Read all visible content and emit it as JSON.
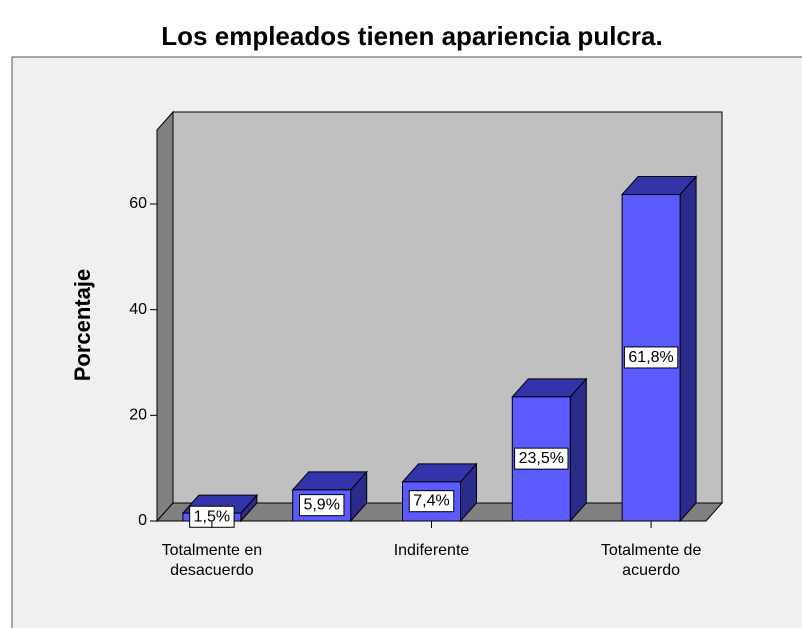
{
  "chart_data": {
    "type": "bar3d",
    "title": "Los empleados tienen apariencia pulcra.",
    "y_label": "Porcentaje",
    "categories": [
      "Totalmente en desacuerdo",
      null,
      "Indiferente",
      null,
      "Totalmente de acuerdo"
    ],
    "values": [
      1.5,
      5.9,
      7.4,
      23.5,
      61.8
    ],
    "value_labels": [
      "1,5%",
      "5,9%",
      "7,4%",
      "23,5%",
      "61,8%"
    ],
    "color": "#5a5aff",
    "ylim": [
      0,
      74
    ],
    "yticks": [
      0,
      20,
      40,
      60
    ]
  }
}
